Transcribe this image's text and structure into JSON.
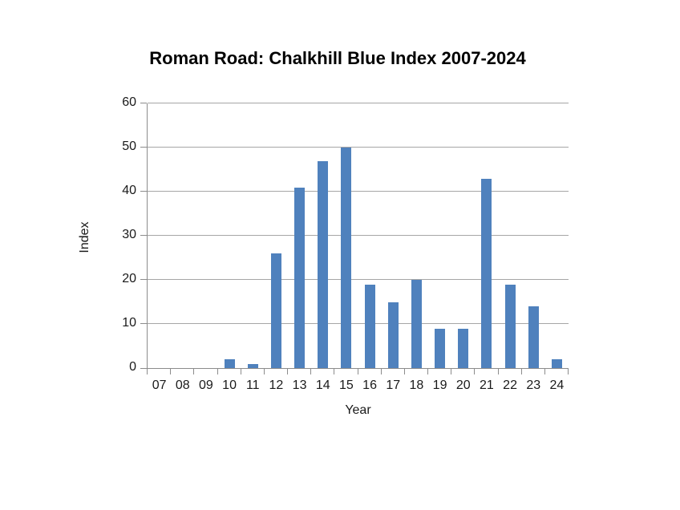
{
  "chart_data": {
    "type": "bar",
    "title": "Roman Road: Chalkhill Blue Index 2007-2024",
    "xlabel": "Year",
    "ylabel": "Index",
    "categories": [
      "07",
      "08",
      "09",
      "10",
      "11",
      "12",
      "13",
      "14",
      "15",
      "16",
      "17",
      "18",
      "19",
      "20",
      "21",
      "22",
      "23",
      "24"
    ],
    "values": [
      0,
      0,
      0,
      2,
      1,
      26,
      41,
      47,
      50,
      19,
      15,
      20,
      9,
      9,
      43,
      19,
      14,
      2
    ],
    "ylim": [
      0,
      60
    ],
    "yticks": [
      0,
      10,
      20,
      30,
      40,
      50,
      60
    ],
    "grid": "horizontal",
    "legend_position": "none",
    "colors": {
      "bar": "#4F81BD",
      "gridline": "#A6A6A6",
      "axis": "#8C8C8C",
      "text": "#000000",
      "background": "#FFFFFF"
    }
  }
}
